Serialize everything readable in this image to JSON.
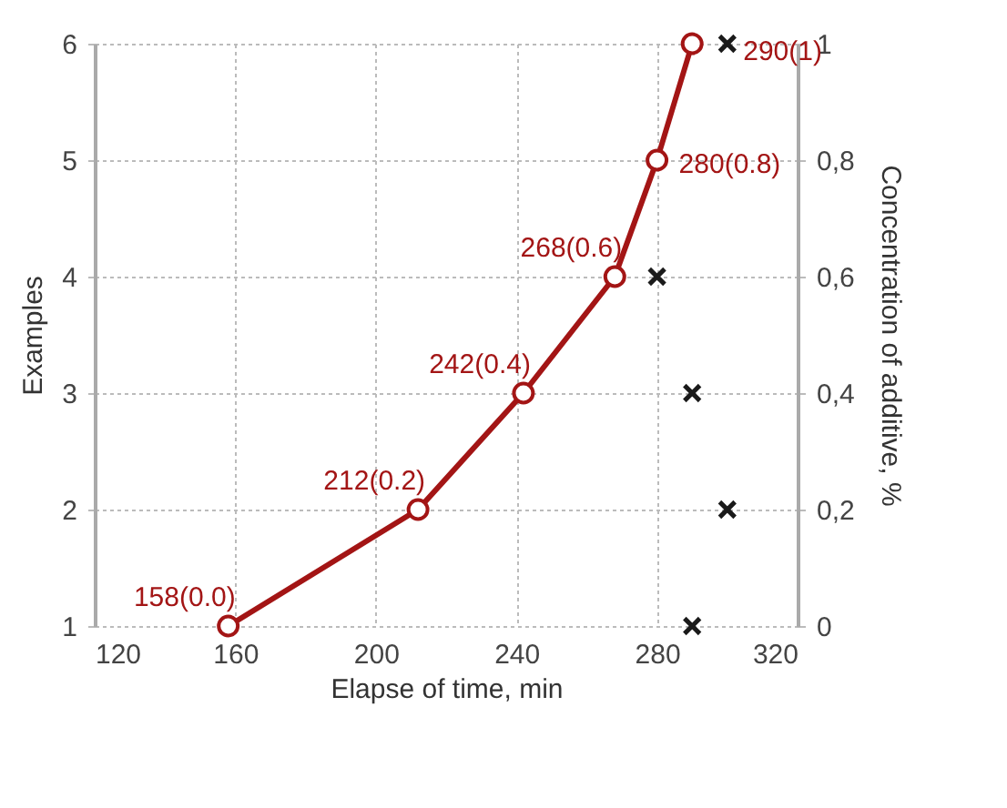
{
  "chart_data": {
    "type": "line",
    "xlabel": "Elapse of time, min",
    "ylabel": "Examples",
    "y2label": "Concentration of additive, %",
    "xlim": [
      120,
      320
    ],
    "xticks": [
      120,
      160,
      200,
      240,
      280,
      320
    ],
    "ylim": [
      1,
      6
    ],
    "yticks": [
      1,
      2,
      3,
      4,
      5,
      6
    ],
    "y2lim": [
      0,
      1
    ],
    "y2ticks": [
      0,
      {
        "value": 0.2,
        "label": "0,2"
      },
      {
        "value": 0.4,
        "label": "0,4"
      },
      {
        "value": 0.6,
        "label": "0,6"
      },
      {
        "value": 0.8,
        "label": "0,8"
      },
      1
    ],
    "grid": true,
    "annotations": [
      {
        "text": "158(0.0)",
        "x": 158,
        "y": 1
      },
      {
        "text": "212(0.2)",
        "x": 212,
        "y": 2
      },
      {
        "text": "242(0.4)",
        "x": 242,
        "y": 3
      },
      {
        "text": "268(0.6)",
        "x": 268,
        "y": 4
      },
      {
        "text": "280(0.8)",
        "x": 280,
        "y": 5
      },
      {
        "text": "290(1)",
        "x": 290,
        "y": 6
      }
    ],
    "series": [
      {
        "color": "#a31515",
        "marker": "circle",
        "line_style": "solid",
        "x": [
          158,
          212,
          242,
          268,
          280,
          290
        ],
        "values": [
          1,
          2,
          3,
          4,
          5,
          6
        ]
      },
      {
        "type": "scatter",
        "axis": "y2",
        "color": "#1a1a1a",
        "marker": "cross",
        "x": [
          290,
          300,
          290,
          280,
          300
        ],
        "values": [
          0,
          0.2,
          0.4,
          0.6,
          1
        ]
      }
    ]
  }
}
